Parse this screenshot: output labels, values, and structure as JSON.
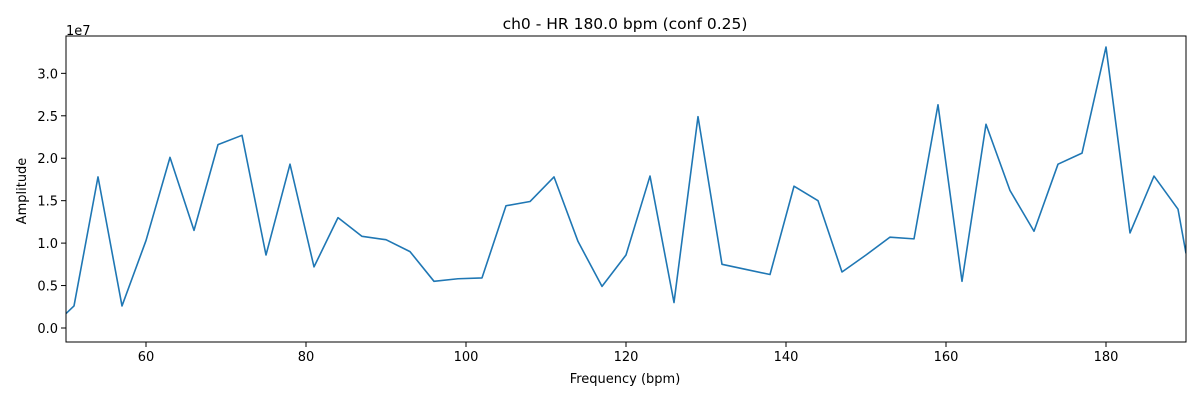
{
  "chart_data": {
    "type": "line",
    "title": "ch0 - HR 180.0 bpm  (conf 0.25)",
    "xlabel": "Frequency (bpm)",
    "ylabel": "Amplitude",
    "y_offset_label": "1e7",
    "xlim": [
      50,
      190
    ],
    "ylim": [
      -1650000,
      34400000
    ],
    "x_ticks": [
      60,
      80,
      100,
      120,
      140,
      160,
      180
    ],
    "x_tick_labels": [
      "60",
      "80",
      "100",
      "120",
      "140",
      "160",
      "180"
    ],
    "y_ticks": [
      0,
      5000000,
      10000000,
      15000000,
      20000000,
      25000000,
      30000000
    ],
    "y_tick_labels": [
      "0.0",
      "0.5",
      "1.0",
      "1.5",
      "2.0",
      "2.5",
      "3.0"
    ],
    "grid": false,
    "series": [
      {
        "color": "#1f77b4",
        "x": [
          50,
          51,
          54,
          57,
          60,
          63,
          66,
          69,
          72,
          75,
          78,
          81,
          84,
          87,
          90,
          93,
          96,
          99,
          102,
          105,
          108,
          111,
          114,
          117,
          120,
          123,
          126,
          129,
          132,
          135,
          138,
          141,
          144,
          147,
          150,
          153,
          156,
          159,
          162,
          165,
          168,
          171,
          174,
          177,
          180,
          183,
          186,
          189,
          190
        ],
        "y": [
          1700000,
          2600000,
          17800000,
          2600000,
          10300000,
          20100000,
          11500000,
          21600000,
          22700000,
          8600000,
          19300000,
          7200000,
          13000000,
          10800000,
          10400000,
          9000000,
          5500000,
          5800000,
          5900000,
          14400000,
          14900000,
          17800000,
          10200000,
          4900000,
          8600000,
          17900000,
          3000000,
          24900000,
          7500000,
          6900000,
          6300000,
          16700000,
          15000000,
          6600000,
          8600000,
          10700000,
          10500000,
          26300000,
          5500000,
          24000000,
          16200000,
          11400000,
          19300000,
          20600000,
          33100000,
          11200000,
          17900000,
          14000000,
          8800000
        ]
      }
    ]
  }
}
